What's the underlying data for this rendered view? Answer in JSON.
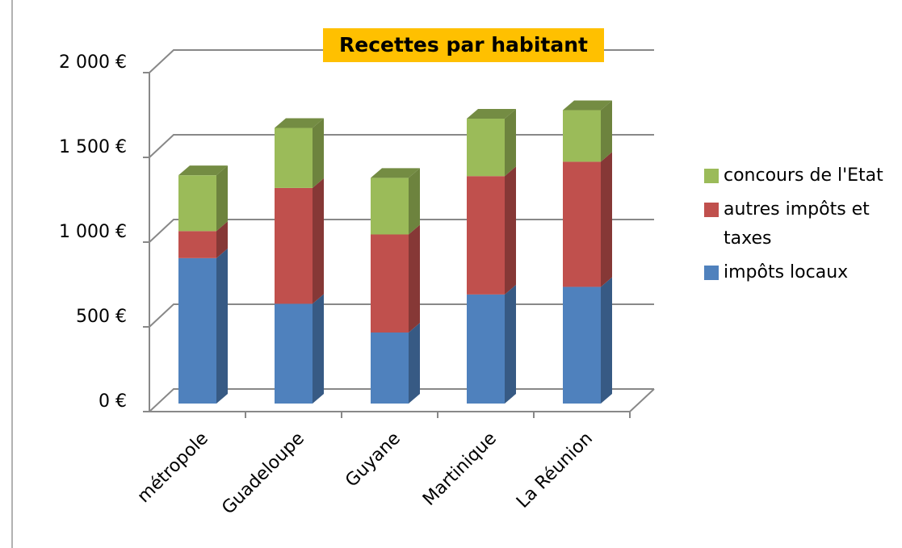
{
  "chart_data": {
    "type": "bar3d-stacked",
    "title": "Recettes par habitant",
    "categories": [
      "métropole",
      "Guadeloupe",
      "Guyane",
      "Martinique",
      "La Réunion"
    ],
    "series": [
      {
        "name": "impôts locaux",
        "color": "#4f81bd",
        "values": [
          860,
          590,
          420,
          645,
          690
        ]
      },
      {
        "name": "autres impôts et taxes",
        "color": "#c0504d",
        "values": [
          160,
          685,
          580,
          700,
          740
        ]
      },
      {
        "name": "concours de l'Etat",
        "color": "#9bbb59",
        "values": [
          330,
          355,
          335,
          340,
          305
        ]
      }
    ],
    "ylim": [
      0,
      2000
    ],
    "yticks": [
      {
        "value": 0,
        "label": "0 €"
      },
      {
        "value": 500,
        "label": "500 €"
      },
      {
        "value": 1000,
        "label": "1 000 €"
      },
      {
        "value": 1500,
        "label": "1 500 €"
      },
      {
        "value": 2000,
        "label": "2 000 €"
      }
    ],
    "grid": true,
    "legend": "right"
  }
}
